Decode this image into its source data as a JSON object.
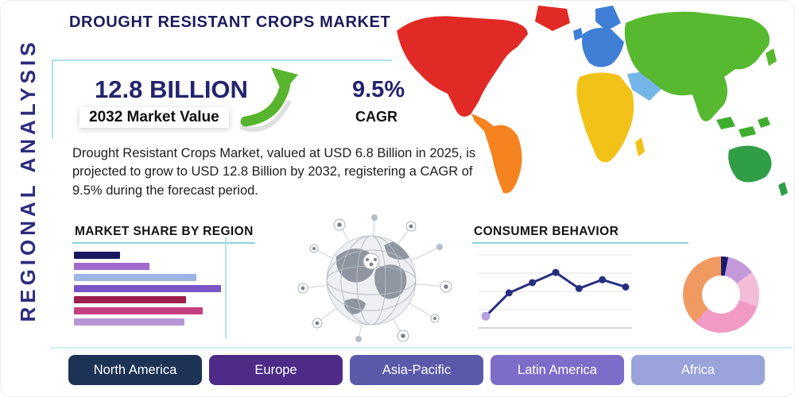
{
  "page": {
    "title": "DROUGHT RESISTANT CROPS MARKET",
    "side_label": "REGIONAL ANALYSIS"
  },
  "stats": {
    "market_value": "12.8 BILLION",
    "market_value_caption": "2032 Market Value",
    "cagr_value": "9.5%",
    "cagr_caption": "CAGR",
    "description": "Drought Resistant Crops Market, valued at USD 6.8 Billion in 2025, is projected to grow to USD 12.8 Billion by 2032, registering a CAGR of 9.5% during the forecast period."
  },
  "sections": {
    "market_share": "MARKET SHARE BY REGION",
    "consumer_behavior": "CONSUMER BEHAVIOR"
  },
  "region_buttons": [
    {
      "label": "North America",
      "color": "#1d3356"
    },
    {
      "label": "Europe",
      "color": "#4d2b87"
    },
    {
      "label": "Asia-Pacific",
      "color": "#5b59aa"
    },
    {
      "label": "Latin America",
      "color": "#7e6cc9"
    },
    {
      "label": "Africa",
      "color": "#9aa3da"
    }
  ],
  "chart_data": [
    {
      "type": "bar",
      "title": "MARKET SHARE BY REGION",
      "orientation": "horizontal",
      "values": [
        30,
        49,
        80,
        96,
        73,
        84,
        72
      ],
      "colors": [
        "#181860",
        "#a368cb",
        "#9cb4e6",
        "#7a55c8",
        "#9c1f4d",
        "#c4407e",
        "#b697d6"
      ],
      "xlim": [
        0,
        100
      ],
      "grid": false,
      "legend": false
    },
    {
      "type": "line",
      "title": "CONSUMER BEHAVIOR",
      "x": [
        1,
        2,
        3,
        4,
        5,
        6,
        7
      ],
      "values": [
        16,
        48,
        62,
        76,
        54,
        66,
        56
      ],
      "ylim": [
        0,
        100
      ],
      "line_color": "#27307e",
      "marker_color": "#27307e",
      "first_marker_color": "#b5a1e0",
      "grid": true,
      "legend": false
    },
    {
      "type": "pie",
      "donut": true,
      "segments": [
        {
          "value": 3,
          "color": "#1b1b6b"
        },
        {
          "value": 12,
          "color": "#c399d9"
        },
        {
          "value": 15,
          "color": "#f3bcd9"
        },
        {
          "value": 32,
          "color": "#f19ac4"
        },
        {
          "value": 38,
          "color": "#f09a62"
        }
      ],
      "legend": false
    }
  ],
  "map_colors": {
    "north_america": "#e12a26",
    "greenland": "#e12a26",
    "south_america": "#f5831f",
    "europe": "#3f7fd6",
    "africa": "#f2c218",
    "middle_east": "#74b6e8",
    "asia": "#56b92f",
    "southeast_asia": "#3fae2e",
    "australia": "#2f9e47"
  },
  "theme": {
    "title_navy": "#1b1b5e",
    "indigo_side_label": "#2c2c7e",
    "accent_teal": "#8fd2dc",
    "arrow_green": "#58b42e",
    "text_dark": "#1d1d1d"
  }
}
